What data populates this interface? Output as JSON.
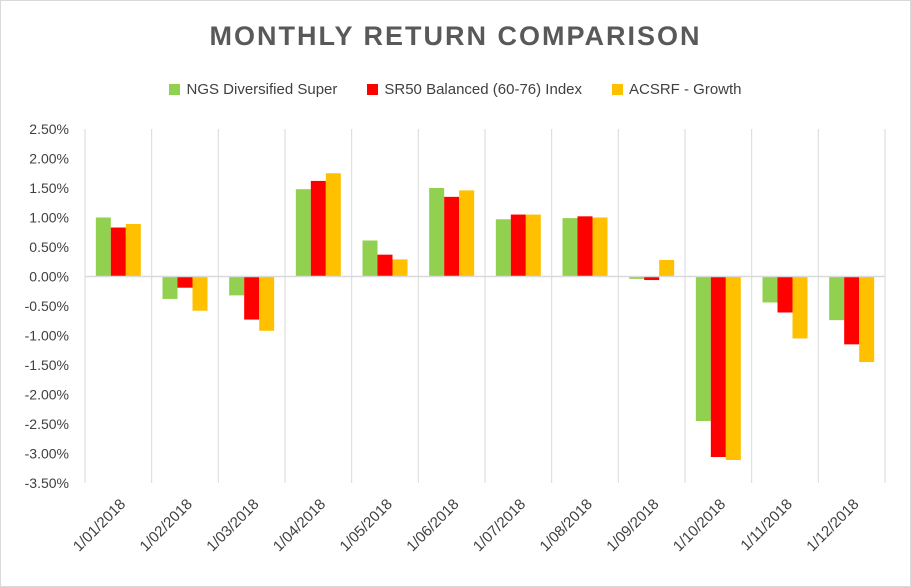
{
  "chart_data": {
    "type": "bar",
    "title": "MONTHLY RETURN COMPARISON",
    "xlabel": "",
    "ylabel": "",
    "ylim": [
      -3.5,
      2.5
    ],
    "ytick_step": 0.5,
    "ytick_labels": [
      "2.50%",
      "2.00%",
      "1.50%",
      "1.00%",
      "0.50%",
      "0.00%",
      "-0.50%",
      "-1.00%",
      "-1.50%",
      "-2.00%",
      "-2.50%",
      "-3.00%",
      "-3.50%"
    ],
    "grid": "vertical category separators",
    "legend_position": "top",
    "categories": [
      "1/01/2018",
      "1/02/2018",
      "1/03/2018",
      "1/04/2018",
      "1/05/2018",
      "1/06/2018",
      "1/07/2018",
      "1/08/2018",
      "1/09/2018",
      "1/10/2018",
      "1/11/2018",
      "1/12/2018"
    ],
    "series": [
      {
        "name": "NGS Diversified Super",
        "color": "#92d050",
        "values": [
          1.0,
          -0.38,
          -0.32,
          1.48,
          0.61,
          1.5,
          0.97,
          0.99,
          -0.04,
          -2.45,
          -0.44,
          -0.74
        ]
      },
      {
        "name": "SR50 Balanced (60-76) Index",
        "color": "#ff0000",
        "values": [
          0.83,
          -0.19,
          -0.73,
          1.62,
          0.37,
          1.35,
          1.05,
          1.02,
          -0.06,
          -3.06,
          -0.61,
          -1.15
        ]
      },
      {
        "name": "ACSRF - Growth",
        "color": "#ffc000",
        "values": [
          0.89,
          -0.58,
          -0.92,
          1.75,
          0.29,
          1.46,
          1.05,
          1.0,
          0.28,
          -3.11,
          -1.05,
          -1.45
        ]
      }
    ]
  }
}
